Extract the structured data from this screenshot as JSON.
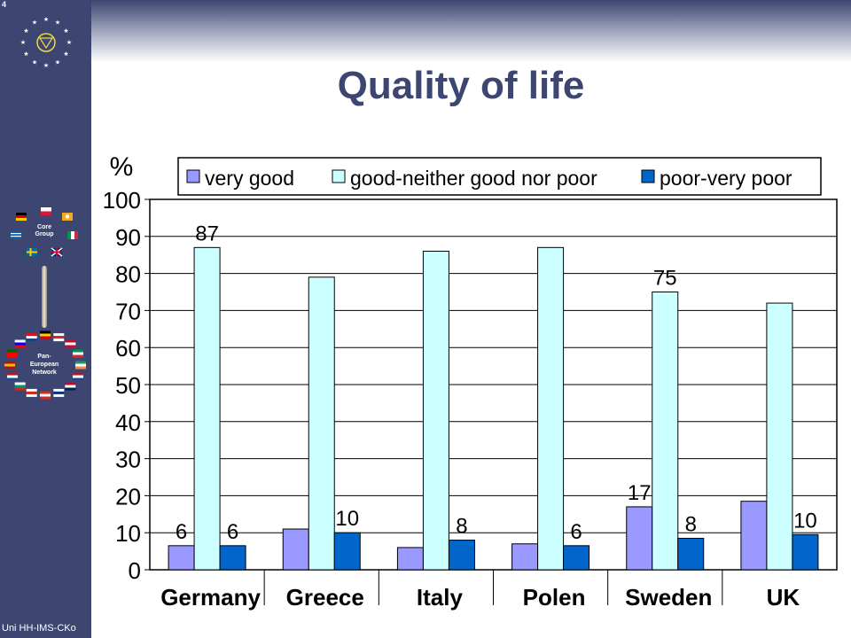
{
  "slide": {
    "number": "4",
    "title": "Quality of life",
    "footer": "Uni HH-IMS-CKo"
  },
  "sidebar": {
    "core_label_line1": "Core",
    "core_label_line2": "Group",
    "pan_label_line1": "Pan-",
    "pan_label_line2": "European",
    "pan_label_line3": "Network"
  },
  "chart_data": {
    "type": "bar",
    "title": "",
    "ylabel": "%",
    "xlabel": "",
    "ylim": [
      0,
      100
    ],
    "yticks": [
      0,
      10,
      20,
      30,
      40,
      50,
      60,
      70,
      80,
      90,
      100
    ],
    "grid": true,
    "legend_position": "top",
    "categories": [
      "Germany",
      "Greece",
      "Italy",
      "Polen",
      "Sweden",
      "UK"
    ],
    "series": [
      {
        "name": "very good",
        "color": "#9999ff",
        "values": [
          6.5,
          11,
          6,
          7,
          17,
          18.5
        ]
      },
      {
        "name": "good-neither good nor poor",
        "color": "#ccffff",
        "values": [
          87,
          79,
          86,
          87,
          75,
          72
        ]
      },
      {
        "name": "poor-very poor",
        "color": "#0066cc",
        "values": [
          6.5,
          10,
          8,
          6.5,
          8.5,
          9.5
        ]
      }
    ],
    "data_labels": [
      {
        "category": "Germany",
        "series": 0,
        "text": "6"
      },
      {
        "category": "Germany",
        "series": 1,
        "text": "87"
      },
      {
        "category": "Germany",
        "series": 2,
        "text": "6"
      },
      {
        "category": "Greece",
        "series": 2,
        "text": "10"
      },
      {
        "category": "Italy",
        "series": 2,
        "text": "8"
      },
      {
        "category": "Polen",
        "series": 2,
        "text": "6"
      },
      {
        "category": "Sweden",
        "series": 0,
        "text": "17"
      },
      {
        "category": "Sweden",
        "series": 1,
        "text": "75"
      },
      {
        "category": "Sweden",
        "series": 2,
        "text": "8"
      },
      {
        "category": "UK",
        "series": 2,
        "text": "10"
      }
    ]
  }
}
